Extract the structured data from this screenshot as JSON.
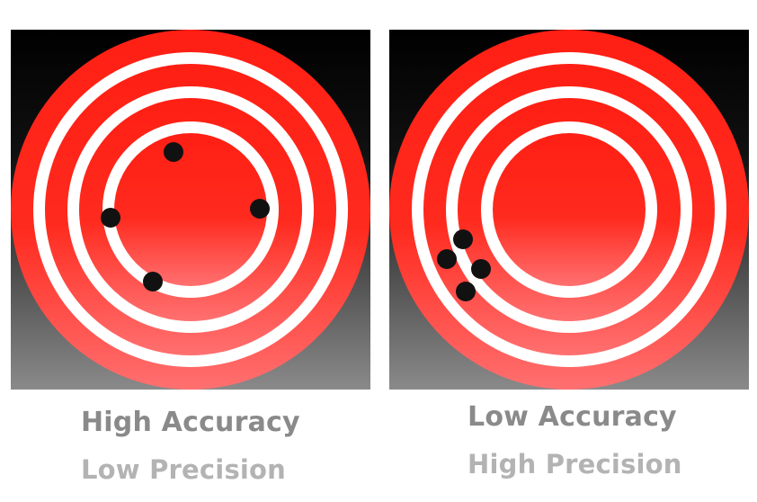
{
  "panels": [
    {
      "accuracy_label": "High Accuracy",
      "precision_label": "Low Precision",
      "shots": 4
    },
    {
      "accuracy_label": "Low Accuracy",
      "precision_label": "High Precision",
      "shots": 4
    }
  ],
  "colors": {
    "ring_red_top": "#ff1f14",
    "ring_red_bottom": "#ff6f6f",
    "ring_white": "#ffffff",
    "bg_top": "#000000",
    "bg_bottom": "#808080",
    "shot": "#111111",
    "accuracy_text": "#8a8a8a",
    "precision_text": "#b3b3b3"
  }
}
